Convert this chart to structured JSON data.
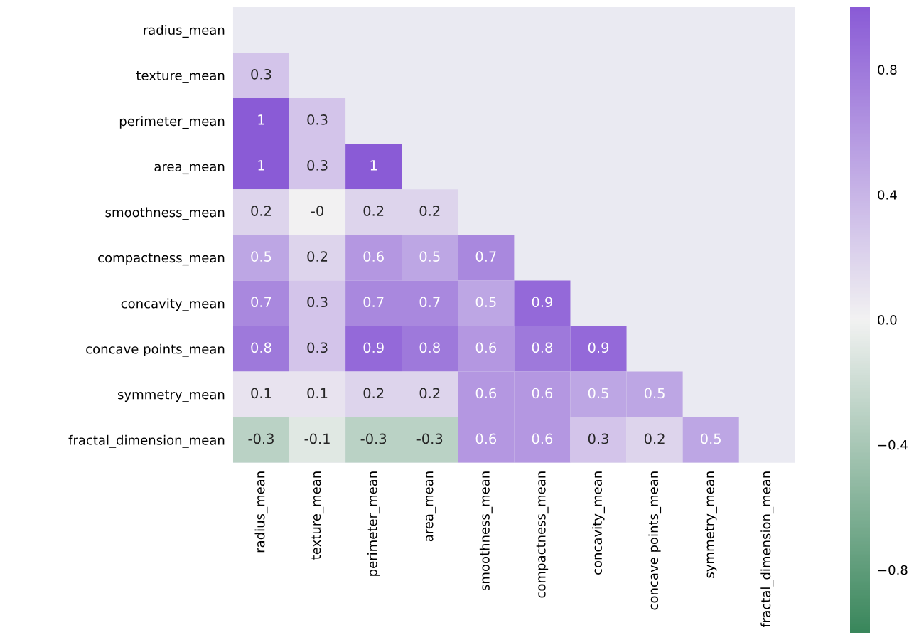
{
  "chart_data": {
    "type": "heatmap",
    "categories": [
      "radius_mean",
      "texture_mean",
      "perimeter_mean",
      "area_mean",
      "smoothness_mean",
      "compactness_mean",
      "concavity_mean",
      "concave points_mean",
      "symmetry_mean",
      "fractal_dimension_mean"
    ],
    "y_categories": [
      "radius_mean",
      "texture_mean",
      "perimeter_mean",
      "area_mean",
      "smoothness_mean",
      "compactness_mean",
      "concavity_mean",
      "concave points_mean",
      "symmetry_mean",
      "fractal_dimension_mean"
    ],
    "cells": [
      [
        null,
        null,
        null,
        null,
        null,
        null,
        null,
        null,
        null,
        null
      ],
      [
        0.3,
        null,
        null,
        null,
        null,
        null,
        null,
        null,
        null,
        null
      ],
      [
        1,
        0.3,
        null,
        null,
        null,
        null,
        null,
        null,
        null,
        null
      ],
      [
        1,
        0.3,
        1,
        null,
        null,
        null,
        null,
        null,
        null,
        null
      ],
      [
        0.2,
        -0.0,
        0.2,
        0.2,
        null,
        null,
        null,
        null,
        null,
        null
      ],
      [
        0.5,
        0.2,
        0.6,
        0.5,
        0.7,
        null,
        null,
        null,
        null,
        null
      ],
      [
        0.7,
        0.3,
        0.7,
        0.7,
        0.5,
        0.9,
        null,
        null,
        null,
        null
      ],
      [
        0.8,
        0.3,
        0.9,
        0.8,
        0.6,
        0.8,
        0.9,
        null,
        null,
        null
      ],
      [
        0.1,
        0.1,
        0.2,
        0.2,
        0.6,
        0.6,
        0.5,
        0.5,
        null,
        null
      ],
      [
        -0.3,
        -0.1,
        -0.3,
        -0.3,
        0.6,
        0.6,
        0.3,
        0.2,
        0.5,
        null
      ]
    ],
    "cell_labels": [
      [
        null,
        null,
        null,
        null,
        null,
        null,
        null,
        null,
        null,
        null
      ],
      [
        "0.3",
        null,
        null,
        null,
        null,
        null,
        null,
        null,
        null,
        null
      ],
      [
        "1",
        "0.3",
        null,
        null,
        null,
        null,
        null,
        null,
        null,
        null
      ],
      [
        "1",
        "0.3",
        "1",
        null,
        null,
        null,
        null,
        null,
        null,
        null
      ],
      [
        "0.2",
        "-0",
        "0.2",
        "0.2",
        null,
        null,
        null,
        null,
        null,
        null
      ],
      [
        "0.5",
        "0.2",
        "0.6",
        "0.5",
        "0.7",
        null,
        null,
        null,
        null,
        null
      ],
      [
        "0.7",
        "0.3",
        "0.7",
        "0.7",
        "0.5",
        "0.9",
        null,
        null,
        null,
        null
      ],
      [
        "0.8",
        "0.3",
        "0.9",
        "0.8",
        "0.6",
        "0.8",
        "0.9",
        null,
        null,
        null
      ],
      [
        "0.1",
        "0.1",
        "0.2",
        "0.2",
        "0.6",
        "0.6",
        "0.5",
        "0.5",
        null,
        null
      ],
      [
        "-0.3",
        "-0.1",
        "-0.3",
        "-0.3",
        "0.6",
        "0.6",
        "0.3",
        "0.2",
        "0.5",
        null
      ]
    ],
    "colors": [
      "#3a875c",
      "#f2f2f2",
      "#8a5bd6"
    ],
    "clim": [
      -1,
      1
    ],
    "cticks": [
      {
        "value": -0.8,
        "label": "−0.8"
      },
      {
        "value": -0.4,
        "label": "−0.4"
      },
      {
        "value": 0.0,
        "label": "0.0"
      },
      0.4,
      0.8
    ]
  }
}
